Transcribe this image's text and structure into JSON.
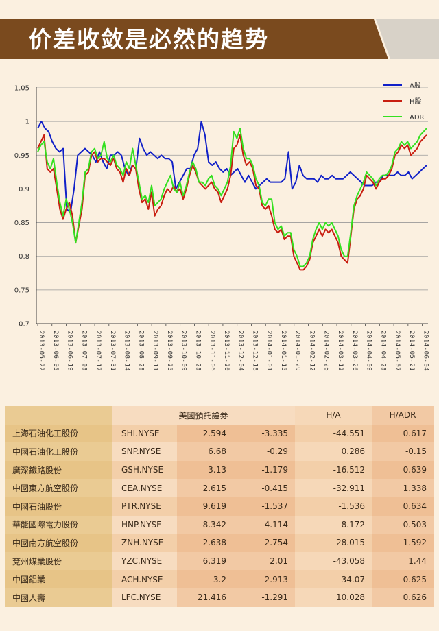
{
  "title": "价差收敛是必然的趋势",
  "colors": {
    "banner": "#7a4a1e",
    "banner_accent": "#d8d2c8",
    "a_share": "#1020c8",
    "h_share": "#c81e10",
    "adr": "#34e020"
  },
  "chart_data": {
    "type": "line",
    "title": "",
    "xlabel": "",
    "ylabel": "",
    "ylim": [
      0.7,
      1.05
    ],
    "yticks": [
      0.7,
      0.75,
      0.8,
      0.85,
      0.9,
      0.95,
      1,
      1.05
    ],
    "grid": true,
    "legend_position": "top-right",
    "x_ticks": [
      "2013-05-22",
      "2013-06-05",
      "2013-06-19",
      "2013-07-03",
      "2013-07-17",
      "2013-07-31",
      "2013-08-14",
      "2013-08-28",
      "2013-09-11",
      "2013-09-25",
      "2013-10-09",
      "2013-10-23",
      "2013-11-06",
      "2013-11-20",
      "2013-12-04",
      "2013-12-18",
      "2014-01-01",
      "2014-01-15",
      "2014-01-29",
      "2014-02-12",
      "2014-02-26",
      "2014-03-12",
      "2014-03-26",
      "2014-04-09",
      "2014-04-23",
      "2014-05-07",
      "2014-05-21",
      "2014-06-04"
    ],
    "series": [
      {
        "name": "A股",
        "color": "#1020c8",
        "values": [
          0.99,
          1.0,
          0.99,
          0.985,
          0.97,
          0.96,
          0.955,
          0.96,
          0.87,
          0.865,
          0.9,
          0.95,
          0.955,
          0.96,
          0.955,
          0.95,
          0.94,
          0.955,
          0.94,
          0.93,
          0.95,
          0.95,
          0.955,
          0.95,
          0.93,
          0.92,
          0.935,
          0.93,
          0.975,
          0.96,
          0.95,
          0.955,
          0.95,
          0.945,
          0.95,
          0.945,
          0.945,
          0.94,
          0.9,
          0.91,
          0.92,
          0.93,
          0.93,
          0.95,
          0.96,
          1.0,
          0.98,
          0.94,
          0.935,
          0.94,
          0.93,
          0.925,
          0.93,
          0.92,
          0.925,
          0.93,
          0.92,
          0.91,
          0.92,
          0.91,
          0.9,
          0.905,
          0.91,
          0.915,
          0.91,
          0.91,
          0.91,
          0.91,
          0.915,
          0.955,
          0.9,
          0.91,
          0.935,
          0.92,
          0.915,
          0.915,
          0.915,
          0.91,
          0.92,
          0.915,
          0.915,
          0.92,
          0.915,
          0.915,
          0.915,
          0.92,
          0.925,
          0.92,
          0.915,
          0.91,
          0.905,
          0.905,
          0.905,
          0.91,
          0.91,
          0.92,
          0.92,
          0.92,
          0.92,
          0.925,
          0.92,
          0.92,
          0.925,
          0.915,
          0.92,
          0.925,
          0.93,
          0.935
        ]
      },
      {
        "name": "H股",
        "color": "#c81e10",
        "values": [
          0.96,
          0.97,
          0.98,
          0.93,
          0.925,
          0.93,
          0.9,
          0.87,
          0.855,
          0.87,
          0.88,
          0.86,
          0.82,
          0.845,
          0.87,
          0.92,
          0.925,
          0.95,
          0.955,
          0.94,
          0.945,
          0.945,
          0.94,
          0.935,
          0.945,
          0.93,
          0.925,
          0.91,
          0.93,
          0.92,
          0.935,
          0.93,
          0.9,
          0.88,
          0.885,
          0.87,
          0.895,
          0.86,
          0.87,
          0.875,
          0.89,
          0.9,
          0.895,
          0.905,
          0.895,
          0.9,
          0.885,
          0.9,
          0.92,
          0.935,
          0.925,
          0.91,
          0.905,
          0.9,
          0.905,
          0.91,
          0.9,
          0.895,
          0.88,
          0.89,
          0.9,
          0.92,
          0.96,
          0.965,
          0.98,
          0.95,
          0.935,
          0.94,
          0.93,
          0.905,
          0.9,
          0.875,
          0.87,
          0.875,
          0.86,
          0.84,
          0.835,
          0.84,
          0.825,
          0.83,
          0.83,
          0.8,
          0.79,
          0.78,
          0.78,
          0.785,
          0.795,
          0.82,
          0.83,
          0.84,
          0.83,
          0.84,
          0.835,
          0.84,
          0.83,
          0.82,
          0.8,
          0.795,
          0.79,
          0.83,
          0.87,
          0.885,
          0.89,
          0.9,
          0.92,
          0.915,
          0.91,
          0.9,
          0.91,
          0.915,
          0.915,
          0.92,
          0.93,
          0.95,
          0.955,
          0.965,
          0.96,
          0.965,
          0.95,
          0.955,
          0.96,
          0.97,
          0.975,
          0.98
        ]
      },
      {
        "name": "ADR",
        "color": "#34e020",
        "values": [
          0.955,
          0.965,
          0.97,
          0.94,
          0.93,
          0.945,
          0.91,
          0.88,
          0.86,
          0.885,
          0.87,
          0.85,
          0.82,
          0.85,
          0.88,
          0.925,
          0.93,
          0.955,
          0.96,
          0.945,
          0.95,
          0.97,
          0.945,
          0.94,
          0.95,
          0.935,
          0.93,
          0.92,
          0.94,
          0.93,
          0.96,
          0.935,
          0.91,
          0.885,
          0.89,
          0.88,
          0.905,
          0.875,
          0.88,
          0.885,
          0.9,
          0.91,
          0.92,
          0.9,
          0.895,
          0.91,
          0.89,
          0.905,
          0.925,
          0.94,
          0.93,
          0.91,
          0.91,
          0.905,
          0.915,
          0.92,
          0.905,
          0.9,
          0.89,
          0.9,
          0.91,
          0.935,
          0.985,
          0.975,
          0.99,
          0.96,
          0.945,
          0.945,
          0.935,
          0.915,
          0.905,
          0.88,
          0.875,
          0.885,
          0.885,
          0.85,
          0.84,
          0.845,
          0.83,
          0.835,
          0.835,
          0.81,
          0.8,
          0.785,
          0.785,
          0.79,
          0.8,
          0.825,
          0.84,
          0.85,
          0.84,
          0.85,
          0.845,
          0.85,
          0.84,
          0.83,
          0.81,
          0.8,
          0.8,
          0.835,
          0.875,
          0.89,
          0.9,
          0.91,
          0.925,
          0.92,
          0.915,
          0.905,
          0.915,
          0.92,
          0.92,
          0.925,
          0.935,
          0.955,
          0.96,
          0.97,
          0.965,
          0.97,
          0.96,
          0.965,
          0.97,
          0.98,
          0.985,
          0.99
        ]
      }
    ]
  },
  "table": {
    "group_header": "美國預託證券",
    "col_ha": "H/A",
    "col_hadr": "H/ADR",
    "rows": [
      {
        "name": "上海石油化工股份",
        "ticker": "SHI.NYSE",
        "price": "2.594",
        "change": "-3.335",
        "ha": "-44.551",
        "hadr": "0.617"
      },
      {
        "name": "中國石油化工股份",
        "ticker": "SNP.NYSE",
        "price": "6.68",
        "change": "-0.29",
        "ha": "0.286",
        "hadr": "-0.15"
      },
      {
        "name": "廣深鐵路股份",
        "ticker": "GSH.NYSE",
        "price": "3.13",
        "change": "-1.179",
        "ha": "-16.512",
        "hadr": "0.639"
      },
      {
        "name": "中國東方航空股份",
        "ticker": "CEA.NYSE",
        "price": "2.615",
        "change": "-0.415",
        "ha": "-32.911",
        "hadr": "1.338"
      },
      {
        "name": "中國石油股份",
        "ticker": "PTR.NYSE",
        "price": "9.619",
        "change": "-1.537",
        "ha": "-1.536",
        "hadr": "0.634"
      },
      {
        "name": "華能國際電力股份",
        "ticker": "HNP.NYSE",
        "price": "8.342",
        "change": "-4.114",
        "ha": "8.172",
        "hadr": "-0.503"
      },
      {
        "name": "中國南方航空股份",
        "ticker": "ZNH.NYSE",
        "price": "2.638",
        "change": "-2.754",
        "ha": "-28.015",
        "hadr": "1.592"
      },
      {
        "name": "兗州煤業股份",
        "ticker": "YZC.NYSE",
        "price": "6.319",
        "change": "2.01",
        "ha": "-43.058",
        "hadr": "1.44"
      },
      {
        "name": "中國鋁業",
        "ticker": "ACH.NYSE",
        "price": "3.2",
        "change": "-2.913",
        "ha": "-34.07",
        "hadr": "0.625"
      },
      {
        "name": "中國人壽",
        "ticker": "LFC.NYSE",
        "price": "21.416",
        "change": "-1.291",
        "ha": "10.028",
        "hadr": "0.626"
      }
    ]
  }
}
